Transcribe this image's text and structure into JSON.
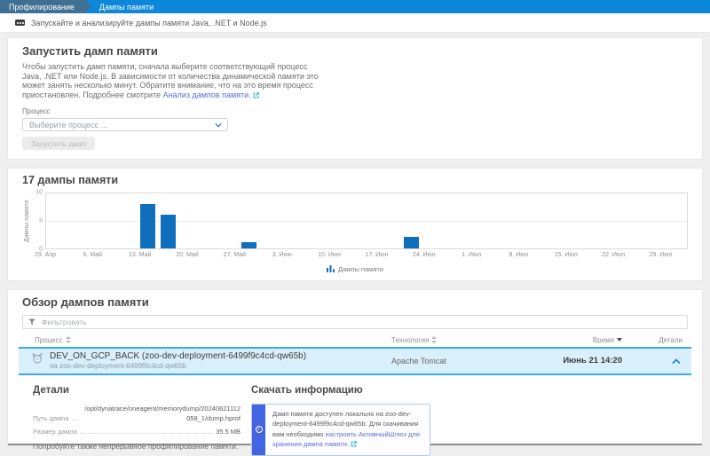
{
  "breadcrumb": {
    "items": [
      {
        "label": "Профилирование"
      },
      {
        "label": "Дампы памяти"
      }
    ]
  },
  "banner": {
    "text": "Запускайте и анализируйте дампы памяти Java, .NET и Node.js"
  },
  "start_card": {
    "title": "Запустить дамп памяти",
    "description": "Чтобы запустить дамп памяти, сначала выберите соответствующий процесс Java, .NET или Node.js. В зависимости от количества динамической памяти это может занять несколько минут. Обратите внимание, что на это время процесс приостановлен. Подробнее смотрите ",
    "description_link": "Анализ дампов памяти.",
    "process_label": "Процесс",
    "select_placeholder": "Выберите процесс ...",
    "start_button": "Запустить дамп"
  },
  "chart_card": {
    "title": "17 дампы памяти"
  },
  "chart_data": {
    "type": "bar",
    "title": "17 дампы памяти",
    "xlabel": "",
    "ylabel": "Дампы памяти",
    "ylim": [
      0,
      10
    ],
    "yticks": [
      0,
      5,
      10
    ],
    "grid": "horizontal",
    "legend_position": "bottom-center",
    "legend": [
      {
        "label": "Дампы памяти",
        "color": "#0f6fbd"
      }
    ],
    "x_tick_labels": [
      "29. Апр",
      "6. Май",
      "13. Май",
      "20. Май",
      "27. Май",
      "3. Июн",
      "10. Июн",
      "17. Июн",
      "24. Июн",
      "1. Июл",
      "8. Июл",
      "15. Июл",
      "22. Июл",
      "29. Июл"
    ],
    "x_tick_days": [
      0,
      7,
      14,
      21,
      28,
      35,
      42,
      49,
      56,
      63,
      70,
      77,
      84,
      91
    ],
    "axis_span_days": 95,
    "bar_width_days": 2.2,
    "bars": [
      {
        "date": "13. Май",
        "day": 14,
        "value": 8
      },
      {
        "date": "16. Май",
        "day": 17,
        "value": 6
      },
      {
        "date": "28. Май",
        "day": 29,
        "value": 1
      },
      {
        "date": "21. Июн",
        "day": 53,
        "value": 2
      }
    ]
  },
  "overview": {
    "title": "Обзор дампов памяти",
    "filter_placeholder": "Фильтровать",
    "columns": [
      {
        "label": "Процесс",
        "sort": "both"
      },
      {
        "label": "Технология",
        "sort": "both"
      },
      {
        "label": "Время",
        "sort": "desc"
      },
      {
        "label": "Детали",
        "sort": "none"
      }
    ],
    "row": {
      "process_title": "DEV_ON_GCP_BACK (zoo-dev-deployment-6499f9c4cd-qw65b)",
      "process_host": "на zoo-dev-deployment-6499f9c4cd-qw65b",
      "technology": "Apache Tomcat",
      "time": "Июнь 21 14:20"
    },
    "details": {
      "title": "Детали",
      "rows": [
        {
          "label": "Путь дампа",
          "value": "/opt/dynatrace/oneagent/memorydump/20240621112058_1/dump.hprof"
        },
        {
          "label": "Размер дампа",
          "value": "35.5 MB"
        }
      ],
      "hint": "Попробуйте также непрерывное профилирование памяти."
    },
    "download": {
      "title": "Скачать информацию",
      "info_text": "Дамп памяти доступен локально на zoo-dev-deployment-6499f9c4cd-qw65b. Для скачивания вам необходимо ",
      "info_link": "настроить АктивныйШлюз для хранения дампа памяти."
    }
  },
  "colors": {
    "breadcrumb_active_bg": "#0d87d9",
    "breadcrumb_parent_bg": "#3f7093",
    "bar_color": "#0f6fbd",
    "selected_row_bg": "#d9effb",
    "selected_row_border": "#39abe3",
    "link_color": "#5b6fd9",
    "info_strip_bg": "#4465e2"
  }
}
